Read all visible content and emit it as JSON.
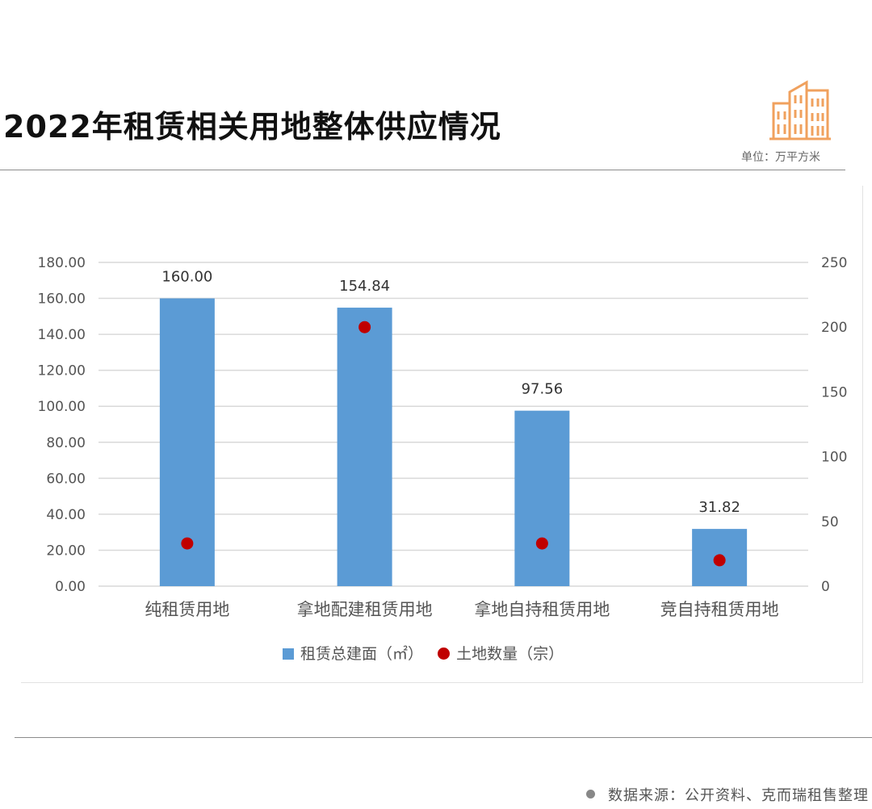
{
  "header": {
    "title": "2022年租赁相关用地整体供应情况",
    "unit": "单位：万平方米",
    "icon": "building-icon",
    "icon_color": "#f0a15e"
  },
  "footer": {
    "source": "数据来源：公开资料、克而瑞租售整理"
  },
  "chart_data": {
    "type": "bar",
    "categories": [
      "纯租赁用地",
      "拿地配建租赁用地",
      "拿地自持租赁用地",
      "竞自持租赁用地"
    ],
    "series": [
      {
        "name": "租赁总建面（㎡）",
        "kind": "bar",
        "axis": "left",
        "color": "#5b9bd5",
        "values": [
          160.0,
          154.84,
          97.56,
          31.82
        ],
        "labels": [
          "160.00",
          "154.84",
          "97.56",
          "31.82"
        ]
      },
      {
        "name": "土地数量（宗）",
        "kind": "scatter",
        "axis": "right",
        "color": "#c00000",
        "values": [
          33,
          200,
          33,
          20
        ]
      }
    ],
    "y_left": {
      "min": 0,
      "max": 180,
      "step": 20,
      "tick_labels": [
        "0.00",
        "20.00",
        "40.00",
        "60.00",
        "80.00",
        "100.00",
        "120.00",
        "140.00",
        "160.00",
        "180.00"
      ]
    },
    "y_right": {
      "min": 0,
      "max": 250,
      "step": 50,
      "tick_labels": [
        "0",
        "50",
        "100",
        "150",
        "200",
        "250"
      ]
    },
    "grid": true,
    "legend": "bottom"
  }
}
